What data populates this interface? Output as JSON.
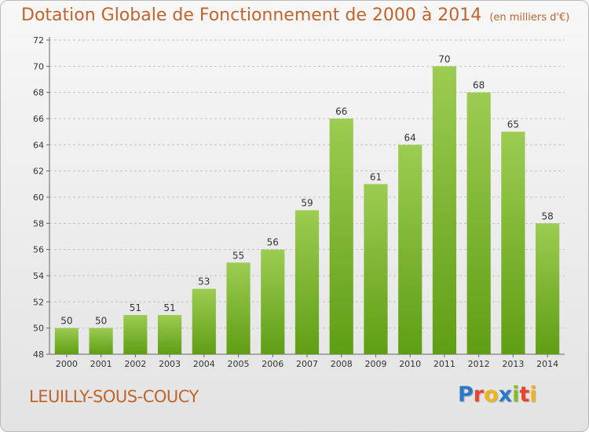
{
  "title": "Dotation Globale de Fonctionnement de 2000 à 2014",
  "subtitle": "(en milliers d'€)",
  "commune": "LEUILLY-SOUS-COUCY",
  "logo": {
    "text": "Proxiti",
    "letters": [
      {
        "ch": "P",
        "color": "#2a79c9"
      },
      {
        "ch": "r",
        "color": "#e8432f"
      },
      {
        "ch": "o",
        "color": "#f2b518"
      },
      {
        "ch": "x",
        "color": "#2a79c9"
      },
      {
        "ch": "i",
        "color": "#7fbe2a"
      },
      {
        "ch": "t",
        "color": "#e8432f"
      },
      {
        "ch": "i",
        "color": "#f2b518"
      }
    ]
  },
  "colors": {
    "title": "#c0642c",
    "bar_light": "#9ccc52",
    "bar_dark": "#5f9e14",
    "grid": "#c4c4c4"
  },
  "chart_data": {
    "type": "bar",
    "categories": [
      "2000",
      "2001",
      "2002",
      "2003",
      "2004",
      "2005",
      "2006",
      "2007",
      "2008",
      "2009",
      "2010",
      "2011",
      "2012",
      "2013",
      "2014"
    ],
    "values": [
      50,
      50,
      51,
      51,
      53,
      55,
      56,
      59,
      66,
      61,
      64,
      70,
      68,
      65,
      58
    ],
    "ylim": [
      48,
      72
    ],
    "yticks": [
      48,
      50,
      52,
      54,
      56,
      58,
      60,
      62,
      64,
      66,
      68,
      70,
      72
    ],
    "grid": true,
    "data_labels": true
  }
}
